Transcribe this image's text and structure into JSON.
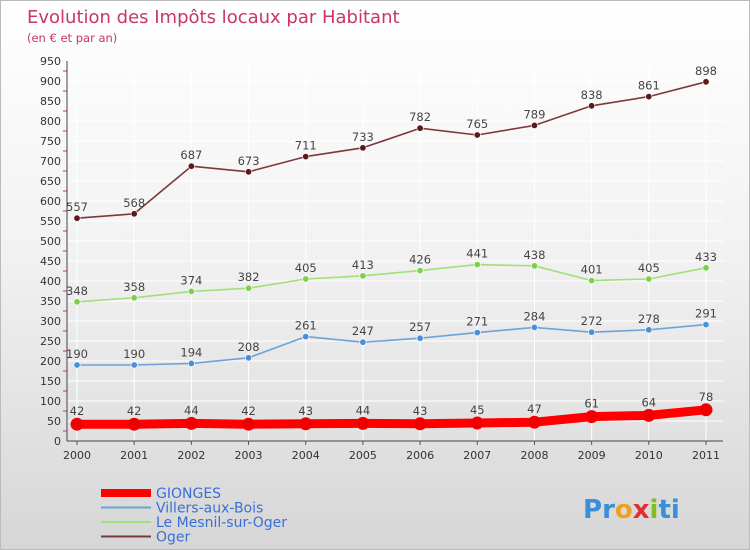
{
  "chart_data": {
    "type": "line",
    "title": "Evolution des Impôts locaux par Habitant",
    "subtitle": "(en € et par an)",
    "xlabel": "",
    "ylabel": "",
    "ylim": [
      0,
      950
    ],
    "yticks": [
      0,
      50,
      100,
      150,
      200,
      250,
      300,
      350,
      400,
      450,
      500,
      550,
      600,
      650,
      700,
      750,
      800,
      850,
      900,
      950
    ],
    "grid": true,
    "legend_position": "bottom-left",
    "categories": [
      "2000",
      "2001",
      "2002",
      "2003",
      "2004",
      "2005",
      "2006",
      "2007",
      "2008",
      "2009",
      "2010",
      "2011"
    ],
    "series": [
      {
        "name": "GIONGES",
        "color": "#ff0000",
        "marker": "#ee0000",
        "thick": true,
        "values": [
          42,
          42,
          44,
          42,
          43,
          44,
          43,
          45,
          47,
          61,
          64,
          78
        ]
      },
      {
        "name": "Villers-aux-Bois",
        "color": "#6fa3d6",
        "marker": "#4a90d9",
        "thick": false,
        "values": [
          190,
          190,
          194,
          208,
          261,
          247,
          257,
          271,
          284,
          272,
          278,
          291
        ]
      },
      {
        "name": "Le Mesnil-sur-Oger",
        "color": "#9fe07a",
        "marker": "#7ed04b",
        "thick": false,
        "values": [
          348,
          358,
          374,
          382,
          405,
          413,
          426,
          441,
          438,
          401,
          405,
          433
        ]
      },
      {
        "name": "Oger",
        "color": "#7a3a3a",
        "marker": "#5a1a1a",
        "thick": false,
        "values": [
          557,
          568,
          687,
          673,
          711,
          733,
          782,
          765,
          789,
          838,
          861,
          898
        ]
      }
    ]
  },
  "brand": {
    "text": "Proxiti",
    "letters": [
      "P",
      "r",
      "o",
      "x",
      "i",
      "t",
      "i"
    ],
    "colors": [
      "#3a8fd8",
      "#3a8fd8",
      "#f0a020",
      "#e03030",
      "#7ec020",
      "#3a8fd8",
      "#3a8fd8"
    ]
  }
}
